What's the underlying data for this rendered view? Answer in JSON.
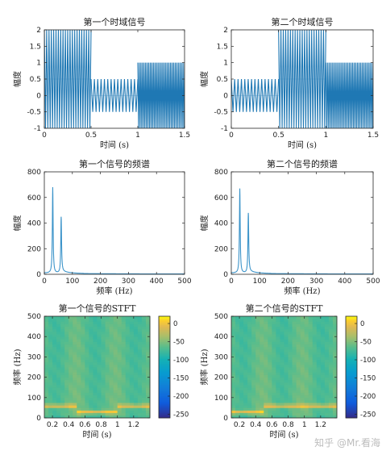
{
  "watermark": "知乎 @Mr.看海",
  "colors": {
    "signal": "#1f78b4",
    "spectrum": "#3a93c9",
    "axis": "#262626"
  },
  "chart_data": [
    {
      "type": "line",
      "title": "第一个时域信号",
      "xlabel": "时间 (s)",
      "ylabel": "幅度",
      "xlim": [
        0,
        1.5
      ],
      "ylim": [
        -1,
        2
      ],
      "xticks": [
        0,
        0.5,
        1,
        1.5
      ],
      "xtick_labels": [
        "0",
        "0.5",
        "1",
        "1.5"
      ],
      "yticks": [
        -1,
        -0.5,
        0,
        0.5,
        1,
        1.5,
        2
      ],
      "ytick_labels": [
        "-1",
        "-0.5",
        "0",
        "0.5",
        "1",
        "1.5",
        "2"
      ],
      "grid": false,
      "series": [
        {
          "segments": [
            {
              "t_start": 0,
              "t_end": 0.5,
              "min": -1,
              "max": 2,
              "cycles": 20
            },
            {
              "t_start": 0.5,
              "t_end": 1.0,
              "min": -0.5,
              "max": 0.5,
              "cycles": 14
            },
            {
              "t_start": 1.0,
              "t_end": 1.5,
              "min": -1,
              "max": 1,
              "cycles": 30
            }
          ]
        }
      ]
    },
    {
      "type": "line",
      "title": "第二个时域信号",
      "xlabel": "时间 (s)",
      "ylabel": "幅度",
      "xlim": [
        0,
        1.5
      ],
      "ylim": [
        -1,
        2
      ],
      "xticks": [
        0,
        0.5,
        1,
        1.5
      ],
      "xtick_labels": [
        "0",
        "0.5",
        "1",
        "1.5"
      ],
      "yticks": [
        -1,
        -0.5,
        0,
        0.5,
        1,
        1.5,
        2
      ],
      "ytick_labels": [
        "-1",
        "-0.5",
        "0",
        "0.5",
        "1",
        "1.5",
        "2"
      ],
      "grid": false,
      "series": [
        {
          "segments": [
            {
              "t_start": 0,
              "t_end": 0.5,
              "min": -0.5,
              "max": 0.5,
              "cycles": 14
            },
            {
              "t_start": 0.5,
              "t_end": 1.0,
              "min": -1,
              "max": 2,
              "cycles": 20
            },
            {
              "t_start": 1.0,
              "t_end": 1.5,
              "min": -1,
              "max": 1,
              "cycles": 30
            }
          ]
        }
      ]
    },
    {
      "type": "line",
      "title": "第一个信号的频谱",
      "xlabel": "频率 (Hz)",
      "ylabel": "幅度",
      "xlim": [
        0,
        500
      ],
      "ylim": [
        0,
        800
      ],
      "xticks": [
        0,
        100,
        200,
        300,
        400,
        500
      ],
      "xtick_labels": [
        "0",
        "100",
        "200",
        "300",
        "400",
        "500"
      ],
      "yticks": [
        0,
        200,
        400,
        600,
        800
      ],
      "ytick_labels": [
        "0",
        "200",
        "400",
        "600",
        "800"
      ],
      "grid": false,
      "series": [
        {
          "peaks": [
            {
              "freq": 30,
              "magnitude": 670
            },
            {
              "freq": 60,
              "magnitude": 440
            }
          ],
          "noise_floor": 8
        }
      ]
    },
    {
      "type": "line",
      "title": "第二个信号的频谱",
      "xlabel": "频率 (Hz)",
      "ylabel": "幅度",
      "xlim": [
        0,
        500
      ],
      "ylim": [
        0,
        800
      ],
      "xticks": [
        0,
        100,
        200,
        300,
        400,
        500
      ],
      "xtick_labels": [
        "0",
        "100",
        "200",
        "300",
        "400",
        "500"
      ],
      "yticks": [
        0,
        200,
        400,
        600,
        800
      ],
      "ytick_labels": [
        "0",
        "200",
        "400",
        "600",
        "800"
      ],
      "grid": false,
      "series": [
        {
          "peaks": [
            {
              "freq": 30,
              "magnitude": 660
            },
            {
              "freq": 60,
              "magnitude": 470
            }
          ],
          "noise_floor": 8
        }
      ]
    },
    {
      "type": "heatmap",
      "title": "第一个信号的STFT",
      "xlabel": "时间 (s)",
      "ylabel": "频率 (Hz)",
      "xlim": [
        0.1,
        1.4
      ],
      "ylim": [
        0,
        500
      ],
      "xticks": [
        0.2,
        0.4,
        0.6,
        0.8,
        1,
        1.2
      ],
      "xtick_labels": [
        "0.2",
        "0.4",
        "0.6",
        "0.8",
        "1",
        "1.2"
      ],
      "yticks": [
        0,
        100,
        200,
        300,
        400,
        500
      ],
      "ytick_labels": [
        "0",
        "100",
        "200",
        "300",
        "400",
        "500"
      ],
      "colormap": "parula",
      "colorbar": {
        "range": [
          -260,
          20
        ],
        "ticks": [
          0,
          -50,
          -100,
          -150,
          -200,
          -250
        ],
        "tick_labels": [
          "0",
          "-50",
          "-100",
          "-150",
          "-200",
          "-250"
        ]
      },
      "bright_bands": [
        {
          "t_start": 0.1,
          "t_end": 0.5,
          "freq": 60
        },
        {
          "t_start": 0.5,
          "t_end": 1.0,
          "freq": 30
        },
        {
          "t_start": 1.0,
          "t_end": 1.4,
          "freq": 60
        }
      ]
    },
    {
      "type": "heatmap",
      "title": "第二个信号的STFT",
      "xlabel": "时间 (s)",
      "ylabel": "频率 (Hz)",
      "xlim": [
        0.1,
        1.4
      ],
      "ylim": [
        0,
        500
      ],
      "xticks": [
        0.2,
        0.4,
        0.6,
        0.8,
        1,
        1.2
      ],
      "xtick_labels": [
        "0.2",
        "0.4",
        "0.6",
        "0.8",
        "1",
        "1.2"
      ],
      "yticks": [
        0,
        100,
        200,
        300,
        400,
        500
      ],
      "ytick_labels": [
        "0",
        "100",
        "200",
        "300",
        "400",
        "500"
      ],
      "colormap": "parula",
      "colorbar": {
        "range": [
          -260,
          20
        ],
        "ticks": [
          0,
          -50,
          -100,
          -150,
          -200,
          -250
        ],
        "tick_labels": [
          "0",
          "-50",
          "-100",
          "-150",
          "-200",
          "-250"
        ]
      },
      "bright_bands": [
        {
          "t_start": 0.1,
          "t_end": 0.5,
          "freq": 30
        },
        {
          "t_start": 0.5,
          "t_end": 1.0,
          "freq": 60
        },
        {
          "t_start": 1.0,
          "t_end": 1.4,
          "freq": 60
        }
      ]
    }
  ]
}
